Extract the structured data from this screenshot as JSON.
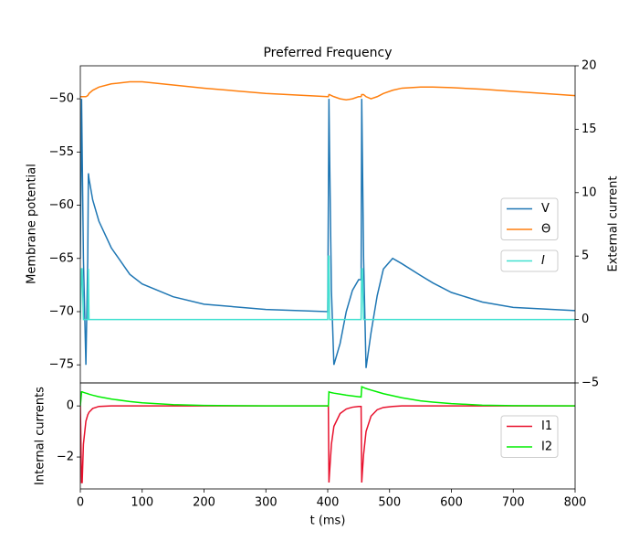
{
  "chart_data": [
    {
      "type": "line",
      "title": "Preferred Frequency",
      "y_label": "Membrane potential",
      "y2_label": "External current",
      "x": [
        0,
        2,
        3,
        5,
        9,
        12,
        13,
        14,
        20,
        30,
        50,
        80,
        100,
        150,
        200,
        300,
        400,
        401,
        402,
        403,
        406,
        410,
        420,
        430,
        440,
        450,
        454,
        455,
        456,
        458,
        462,
        470,
        480,
        490,
        505,
        520,
        550,
        570,
        600,
        650,
        700,
        800
      ],
      "xlim": [
        0,
        800
      ],
      "ylim": [
        -76.7,
        -46.9
      ],
      "yticks": [
        {
          "value": -75,
          "label": "−75"
        },
        {
          "value": -70,
          "label": "−70"
        },
        {
          "value": -65,
          "label": "−65"
        },
        {
          "value": -60,
          "label": "−60"
        },
        {
          "value": -55,
          "label": "−55"
        },
        {
          "value": -50,
          "label": "−50"
        }
      ],
      "y2lim": [
        -5,
        20
      ],
      "y2ticks": [
        {
          "value": -5,
          "label": "−5"
        },
        0,
        5,
        10,
        15,
        20
      ],
      "legend": "center right",
      "series": [
        {
          "name": "V",
          "color": "#1f77b4",
          "values": [
            -65,
            -50,
            -55,
            -65,
            -75,
            -65,
            -57,
            -57.5,
            -59.5,
            -61.5,
            -64,
            -66.5,
            -67.4,
            -68.6,
            -69.3,
            -69.8,
            -70,
            -60,
            -50,
            -55,
            -68,
            -75,
            -73,
            -70,
            -68,
            -67,
            -67,
            -50,
            -55,
            -65,
            -75.3,
            -72,
            -68.5,
            -66,
            -65,
            -65.5,
            -66.6,
            -67.3,
            -68.2,
            -69.1,
            -69.6,
            -69.9
          ]
        },
        {
          "name": "Θ",
          "color": "#ff7f0e",
          "values": [
            -49.8,
            -49.8,
            -49.8,
            -49.8,
            -49.8,
            -49.7,
            -49.6,
            -49.5,
            -49.2,
            -48.9,
            -48.6,
            -48.4,
            -48.4,
            -48.7,
            -49.0,
            -49.5,
            -49.8,
            -49.8,
            -49.6,
            -49.6,
            -49.7,
            -49.8,
            -50.0,
            -50.1,
            -50.0,
            -49.8,
            -49.8,
            -49.6,
            -49.6,
            -49.6,
            -49.8,
            -50.0,
            -49.8,
            -49.5,
            -49.2,
            -49.0,
            -48.9,
            -48.9,
            -48.95,
            -49.1,
            -49.3,
            -49.7
          ]
        },
        {
          "name": "I",
          "color": "#40e0d0",
          "axis": "y2",
          "values": [
            0,
            4,
            4,
            0,
            0,
            0,
            4,
            0,
            0,
            0,
            0,
            0,
            0,
            0,
            0,
            0,
            0,
            5,
            5,
            0,
            0,
            0,
            0,
            0,
            0,
            0,
            0,
            4,
            4,
            0,
            0,
            0,
            0,
            0,
            0,
            0,
            0,
            0,
            0,
            0,
            0,
            0
          ]
        }
      ]
    },
    {
      "type": "line",
      "y_label": "Internal currents",
      "x_label": "t (ms)",
      "x": [
        0,
        2,
        3,
        5,
        9,
        12,
        13,
        14,
        20,
        30,
        50,
        80,
        100,
        150,
        200,
        300,
        400,
        401,
        402,
        403,
        406,
        410,
        420,
        430,
        440,
        450,
        454,
        455,
        456,
        458,
        462,
        470,
        480,
        490,
        505,
        520,
        550,
        570,
        600,
        650,
        700,
        800
      ],
      "xlim": [
        0,
        800
      ],
      "xticks": [
        0,
        100,
        200,
        300,
        400,
        500,
        600,
        700,
        800
      ],
      "ylim": [
        -3.25,
        0.9
      ],
      "yticks": [
        {
          "value": -2,
          "label": "−2"
        },
        0
      ],
      "legend": "center right",
      "series": [
        {
          "name": "I1",
          "color": "#e8112d",
          "values": [
            0,
            -3,
            -3,
            -1.5,
            -0.6,
            -0.35,
            -0.3,
            -0.25,
            -0.1,
            -0.02,
            0,
            0,
            0,
            0,
            0,
            0,
            0,
            0,
            -3,
            -2.6,
            -1.5,
            -0.8,
            -0.3,
            -0.12,
            -0.05,
            -0.02,
            -0.02,
            -3,
            -2.6,
            -1.9,
            -1.0,
            -0.4,
            -0.15,
            -0.06,
            -0.02,
            0,
            0,
            0,
            0,
            0,
            0,
            0
          ]
        },
        {
          "name": "I2",
          "color": "#00ee00",
          "values": [
            0,
            0.55,
            0.55,
            0.53,
            0.5,
            0.48,
            0.47,
            0.46,
            0.42,
            0.36,
            0.27,
            0.17,
            0.12,
            0.05,
            0.02,
            0,
            0,
            0,
            0.55,
            0.54,
            0.52,
            0.5,
            0.46,
            0.42,
            0.39,
            0.36,
            0.35,
            0.75,
            0.74,
            0.72,
            0.68,
            0.62,
            0.55,
            0.48,
            0.4,
            0.32,
            0.2,
            0.15,
            0.09,
            0.03,
            0.01,
            0
          ]
        }
      ]
    }
  ]
}
